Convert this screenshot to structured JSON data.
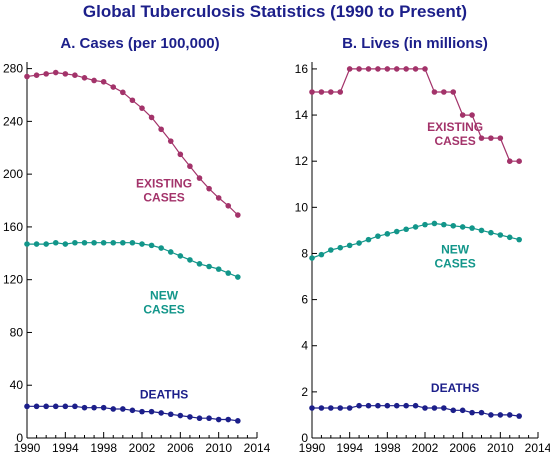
{
  "title": "Global Tuberculosis Statistics (1990 to Present)",
  "colors": {
    "existing": "#a3336a",
    "new": "#12968a",
    "deaths": "#1c1f8a",
    "title": "#1c1f8a"
  },
  "chart_data": [
    {
      "type": "line",
      "title": "A. Cases (per 100,000)",
      "xlabel": "",
      "ylabel": "",
      "xlim": [
        1990,
        2014
      ],
      "ylim": [
        0,
        285
      ],
      "x_ticks": [
        1990,
        1994,
        1998,
        2002,
        2006,
        2010,
        2014
      ],
      "y_ticks": [
        0,
        40,
        80,
        120,
        160,
        200,
        240,
        280
      ],
      "grid": false,
      "x": [
        1990,
        1991,
        1992,
        1993,
        1994,
        1995,
        1996,
        1997,
        1998,
        1999,
        2000,
        2001,
        2002,
        2003,
        2004,
        2005,
        2006,
        2007,
        2008,
        2009,
        2010,
        2011,
        2012
      ],
      "series": [
        {
          "name": "EXISTING CASES",
          "color_key": "existing",
          "values": [
            274,
            275,
            276,
            277,
            276,
            275,
            273,
            271,
            270,
            266,
            262,
            256,
            250,
            243,
            234,
            225,
            215,
            206,
            197,
            189,
            182,
            176,
            169
          ]
        },
        {
          "name": "NEW CASES",
          "color_key": "new",
          "values": [
            147,
            147,
            147,
            148,
            147,
            148,
            148,
            148,
            148,
            148,
            148,
            148,
            147,
            146,
            144,
            141,
            138,
            135,
            132,
            130,
            128,
            125,
            122
          ]
        },
        {
          "name": "DEATHS",
          "color_key": "deaths",
          "values": [
            24,
            24,
            24,
            24,
            24,
            24,
            23,
            23,
            23,
            22,
            22,
            21,
            20,
            20,
            19,
            18,
            17,
            16,
            15,
            15,
            14,
            14,
            13
          ]
        }
      ],
      "annotations": [
        {
          "lines": [
            "EXISTING",
            "CASES"
          ],
          "color_key": "existing",
          "x": 2004.3,
          "y": 190
        },
        {
          "lines": [
            "NEW",
            "CASES"
          ],
          "color_key": "new",
          "x": 2004.3,
          "y": 105
        },
        {
          "lines": [
            "DEATHS"
          ],
          "color_key": "deaths",
          "x": 2004.3,
          "y": 30
        }
      ]
    },
    {
      "type": "line",
      "title": "B. Lives (in millions)",
      "xlabel": "",
      "ylabel": "",
      "xlim": [
        1990,
        2014
      ],
      "ylim": [
        0,
        16.3
      ],
      "x_ticks": [
        1990,
        1994,
        1998,
        2002,
        2006,
        2010,
        2014
      ],
      "y_ticks": [
        0,
        2,
        4,
        6,
        8,
        10,
        12,
        14,
        16
      ],
      "grid": false,
      "x": [
        1990,
        1991,
        1992,
        1993,
        1994,
        1995,
        1996,
        1997,
        1998,
        1999,
        2000,
        2001,
        2002,
        2003,
        2004,
        2005,
        2006,
        2007,
        2008,
        2009,
        2010,
        2011,
        2012
      ],
      "series": [
        {
          "name": "EXISTING CASES",
          "color_key": "existing",
          "values": [
            15,
            15,
            15,
            15,
            16,
            16,
            16,
            16,
            16,
            16,
            16,
            16,
            16,
            15,
            15,
            15,
            14,
            14,
            13,
            13,
            13,
            12,
            12
          ]
        },
        {
          "name": "NEW CASES",
          "color_key": "new",
          "values": [
            7.8,
            7.95,
            8.15,
            8.25,
            8.35,
            8.45,
            8.6,
            8.75,
            8.85,
            8.95,
            9.05,
            9.15,
            9.25,
            9.3,
            9.25,
            9.2,
            9.15,
            9.1,
            9.0,
            8.9,
            8.8,
            8.7,
            8.6
          ]
        },
        {
          "name": "DEATHS",
          "color_key": "deaths",
          "values": [
            1.3,
            1.3,
            1.3,
            1.3,
            1.3,
            1.4,
            1.4,
            1.4,
            1.4,
            1.4,
            1.4,
            1.4,
            1.3,
            1.3,
            1.3,
            1.2,
            1.2,
            1.1,
            1.1,
            1.0,
            1.0,
            1.0,
            0.95
          ]
        }
      ],
      "annotations": [
        {
          "lines": [
            "EXISTING",
            "CASES"
          ],
          "color_key": "existing",
          "x": 2005.2,
          "y": 13.3
        },
        {
          "lines": [
            "NEW",
            "CASES"
          ],
          "color_key": "new",
          "x": 2005.2,
          "y": 8.0
        },
        {
          "lines": [
            "DEATHS"
          ],
          "color_key": "deaths",
          "x": 2005.2,
          "y": 2.0
        }
      ]
    }
  ]
}
